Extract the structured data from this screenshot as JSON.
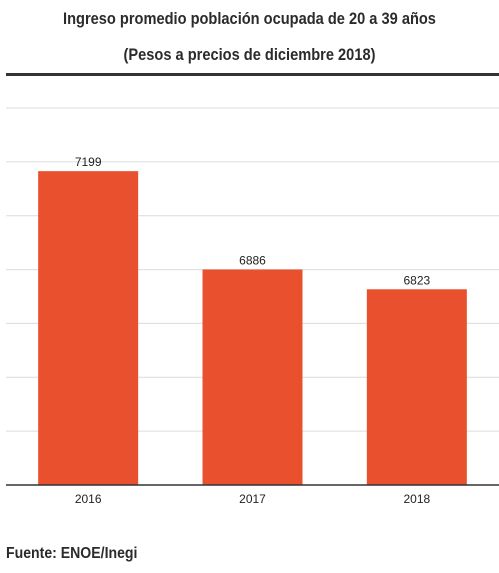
{
  "header": {
    "title": "Ingreso promedio población ocupada de 20 a 39 años",
    "subtitle": "(Pesos a precios de diciembre 2018)"
  },
  "footer": {
    "source": "Fuente: ENOE/Inegi"
  },
  "colors": {
    "bar": "#e8502e",
    "grid": "#dcdcdc",
    "axis": "#333333"
  },
  "chart_data": {
    "type": "bar",
    "title": "Ingreso promedio población ocupada de 20 a 39 años",
    "subtitle": "(Pesos a precios de diciembre 2018)",
    "categories": [
      "2016",
      "2017",
      "2018"
    ],
    "values": [
      7199,
      6886,
      6823
    ],
    "ylim": [
      6200,
      7400
    ],
    "grid": true,
    "xlabel": "",
    "ylabel": ""
  }
}
